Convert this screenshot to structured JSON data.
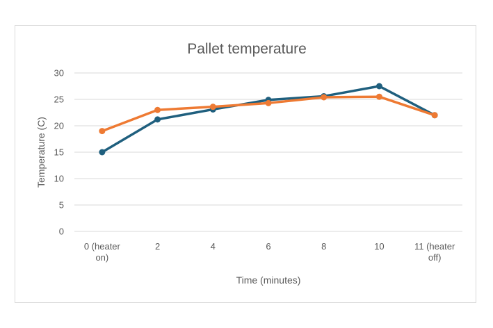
{
  "chart_data": {
    "type": "line",
    "title": "Pallet temperature",
    "xlabel": "Time (minutes)",
    "ylabel": "Temperature (C)",
    "ylim": [
      0,
      30
    ],
    "y_ticks": [
      0,
      5,
      10,
      15,
      20,
      25,
      30
    ],
    "grid": true,
    "legend": "none",
    "categories": [
      [
        "0 (heater",
        "on)"
      ],
      [
        "2"
      ],
      [
        "4"
      ],
      [
        "6"
      ],
      [
        "8"
      ],
      [
        "10"
      ],
      [
        "11 (heater",
        "off)"
      ]
    ],
    "series": [
      {
        "color": "#1f5f7e",
        "values": [
          15,
          21.2,
          23.1,
          24.9,
          25.6,
          27.5,
          22
        ]
      },
      {
        "color": "#ee7a33",
        "values": [
          19,
          23,
          23.6,
          24.3,
          25.4,
          25.5,
          22
        ]
      }
    ]
  }
}
